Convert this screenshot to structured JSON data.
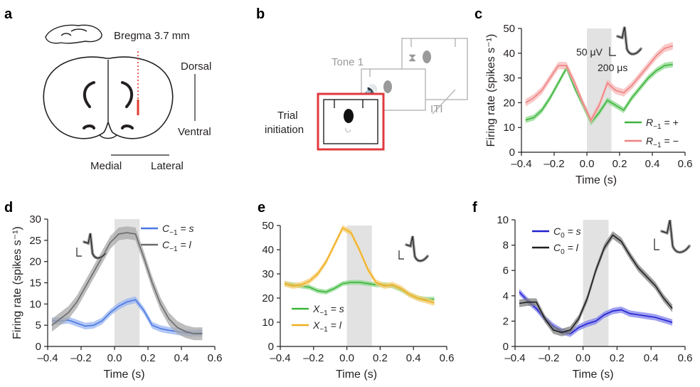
{
  "panel_a": {
    "label": "a",
    "bregma": "Bregma 3.7 mm",
    "dorsal": "Dorsal",
    "ventral": "Ventral",
    "medial": "Medial",
    "lateral": "Lateral"
  },
  "panel_b": {
    "label": "b",
    "tone": "Tone 1",
    "trial_initiation_line1": "Trial",
    "trial_initiation_line2": "initiation",
    "iti": "ITI"
  },
  "chart_data": [
    {
      "id": "c",
      "panel_label": "c",
      "type": "line",
      "xlabel": "Time (s)",
      "ylabel": "Firing rate (spikes s⁻¹)",
      "xlim": [
        -0.4,
        0.6
      ],
      "ylim": [
        0,
        50
      ],
      "xticks": [
        "–0.4",
        "–0.2",
        "0.0",
        "0.2",
        "0.4",
        "0.6"
      ],
      "xtick_values": [
        -0.4,
        -0.2,
        0.0,
        0.2,
        0.4,
        0.6
      ],
      "yticks": [
        "0",
        "10",
        "20",
        "30",
        "40",
        "50"
      ],
      "ytick_values": [
        0,
        10,
        20,
        30,
        40,
        50
      ],
      "shaded_window": [
        0.0,
        0.15
      ],
      "scale_bar": [
        "50 μV",
        "200 μs"
      ],
      "legend_position": "bottom-right",
      "x": [
        -0.375,
        -0.325,
        -0.275,
        -0.225,
        -0.175,
        -0.125,
        -0.075,
        -0.025,
        0.025,
        0.075,
        0.125,
        0.175,
        0.225,
        0.275,
        0.325,
        0.375,
        0.425,
        0.475,
        0.525
      ],
      "series": [
        {
          "name_main": "R",
          "name_sub": "−1",
          "name_rest": " = +",
          "color": "#3cb43c",
          "band_color": "#8ed88e",
          "values": [
            13,
            14,
            17,
            22,
            28,
            34,
            26,
            19,
            12,
            16,
            21,
            19,
            17,
            22,
            26,
            30,
            33,
            35,
            35.5
          ],
          "sem": 1.2
        },
        {
          "name_main": "R",
          "name_sub": "−1",
          "name_rest": " = −",
          "color": "#f08080",
          "band_color": "#f7b8b8",
          "values": [
            20,
            22,
            25,
            30,
            35,
            35,
            28,
            20,
            13,
            19,
            28,
            25,
            24,
            27,
            31,
            35,
            39,
            42,
            43
          ],
          "sem": 1.5
        }
      ]
    },
    {
      "id": "d",
      "panel_label": "d",
      "type": "line",
      "xlabel": "Time (s)",
      "ylabel": "Firing rate (spikes s⁻¹)",
      "xlim": [
        -0.4,
        0.6
      ],
      "ylim": [
        0,
        30
      ],
      "xticks": [
        "–0.4",
        "–0.2",
        "0.0",
        "0.2",
        "0.4",
        "0.6"
      ],
      "xtick_values": [
        -0.4,
        -0.2,
        0.0,
        0.2,
        0.4,
        0.6
      ],
      "yticks": [
        "0",
        "5",
        "10",
        "15",
        "20",
        "25",
        "30"
      ],
      "ytick_values": [
        0,
        5,
        10,
        15,
        20,
        25,
        30
      ],
      "shaded_window": [
        0.0,
        0.15
      ],
      "legend_position": "top-right",
      "x": [
        -0.375,
        -0.325,
        -0.275,
        -0.225,
        -0.175,
        -0.125,
        -0.075,
        -0.025,
        0.025,
        0.075,
        0.125,
        0.175,
        0.225,
        0.275,
        0.325,
        0.375,
        0.425,
        0.475,
        0.525
      ],
      "series": [
        {
          "name_main": "C",
          "name_sub": "−1",
          "name_rest": " = s",
          "color": "#4a78e0",
          "band_color": "#98b4f0",
          "values": [
            6,
            6,
            6.2,
            5.5,
            4.8,
            5,
            6,
            8,
            9.5,
            10.5,
            11,
            8.5,
            5,
            4.2,
            3.8,
            3.5,
            3.2,
            3.1,
            3.2
          ],
          "sem": 0.8
        },
        {
          "name_main": "C",
          "name_sub": "−1",
          "name_rest": " = l",
          "color": "#6b6b6b",
          "band_color": "#a8a8a8",
          "values": [
            5,
            6.5,
            8,
            10.5,
            14,
            17.5,
            21,
            24.5,
            26.5,
            26.8,
            26.5,
            21,
            15,
            10,
            6.5,
            4.5,
            3.5,
            3,
            3
          ],
          "sem": 1.5
        }
      ]
    },
    {
      "id": "e",
      "panel_label": "e",
      "type": "line",
      "xlabel": "Time (s)",
      "ylabel": "",
      "xlim": [
        -0.4,
        0.6
      ],
      "ylim": [
        0,
        55
      ],
      "xticks": [
        "–0.4",
        "–0.2",
        "0.0",
        "0.2",
        "0.4",
        "0.6"
      ],
      "xtick_values": [
        -0.4,
        -0.2,
        0.0,
        0.2,
        0.4,
        0.6
      ],
      "yticks": [
        "0",
        "10",
        "20",
        "30",
        "40",
        "50"
      ],
      "ytick_values": [
        0,
        10,
        20,
        30,
        40,
        50
      ],
      "shaded_window": [
        0.0,
        0.15
      ],
      "legend_position": "bottom-left",
      "x": [
        -0.375,
        -0.325,
        -0.275,
        -0.225,
        -0.175,
        -0.125,
        -0.075,
        -0.025,
        0.025,
        0.075,
        0.125,
        0.175,
        0.225,
        0.275,
        0.325,
        0.375,
        0.425,
        0.475,
        0.525
      ],
      "series": [
        {
          "name_main": "X",
          "name_sub": "−1",
          "name_rest": " = s",
          "color": "#3cb43c",
          "band_color": "#8ed88e",
          "values": [
            26,
            25.5,
            25,
            24.5,
            23,
            22.5,
            24,
            26,
            26.5,
            26.5,
            26,
            25.5,
            25.5,
            25,
            23.5,
            21.5,
            20,
            19.5,
            19.5
          ],
          "sem": 1.0
        },
        {
          "name_main": "X",
          "name_sub": "−1",
          "name_rest": " = l",
          "color": "#f0ae1e",
          "band_color": "#f7d07a",
          "values": [
            26,
            25,
            25.5,
            27,
            30,
            35,
            42,
            49,
            47,
            40,
            32,
            26.5,
            25,
            25.5,
            24,
            21.5,
            20,
            19,
            18
          ],
          "sem": 1.2
        }
      ]
    },
    {
      "id": "f",
      "panel_label": "f",
      "type": "line",
      "xlabel": "Time (s)",
      "ylabel": "",
      "xlim": [
        -0.4,
        0.6
      ],
      "ylim": [
        0,
        10
      ],
      "xticks": [
        "–0.4",
        "–0.2",
        "0.0",
        "0.2",
        "0.4",
        "0.6"
      ],
      "xtick_values": [
        -0.4,
        -0.2,
        0.0,
        0.2,
        0.4,
        0.6
      ],
      "yticks": [
        "0",
        "2",
        "4",
        "6",
        "8",
        "10"
      ],
      "ytick_values": [
        0,
        2,
        4,
        6,
        8,
        10
      ],
      "shaded_window": [
        0.0,
        0.15
      ],
      "legend_position": "top-left",
      "x": [
        -0.375,
        -0.325,
        -0.275,
        -0.225,
        -0.175,
        -0.125,
        -0.075,
        -0.025,
        0.025,
        0.075,
        0.125,
        0.175,
        0.225,
        0.275,
        0.325,
        0.375,
        0.425,
        0.475,
        0.525
      ],
      "series": [
        {
          "name_main": "C",
          "name_sub": "0",
          "name_rest": " = s",
          "color": "#2020d0",
          "band_color": "#8080ec",
          "values": [
            4.3,
            3.6,
            3,
            2.2,
            1.6,
            1.2,
            1,
            1.5,
            1.8,
            2,
            2.5,
            2.8,
            2.9,
            2.6,
            2.5,
            2.4,
            2.3,
            2.1,
            1.9
          ],
          "sem": 0.25
        },
        {
          "name_main": "C",
          "name_sub": "0",
          "name_rest": " = l",
          "color": "#202020",
          "band_color": "#808080",
          "values": [
            3.4,
            3.5,
            3.5,
            2.2,
            1.3,
            1.1,
            1.3,
            2.2,
            3.8,
            6,
            7.8,
            8.8,
            8.3,
            7.2,
            6.2,
            5.5,
            4.8,
            3.8,
            3
          ],
          "sem": 0.3
        }
      ]
    }
  ]
}
